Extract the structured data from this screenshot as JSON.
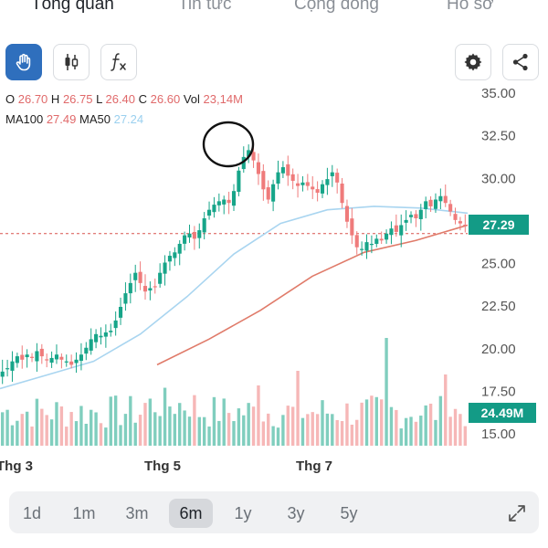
{
  "tabs": [
    {
      "label": "Tổng quan",
      "active": true
    },
    {
      "label": "Tin tức",
      "active": false
    },
    {
      "label": "Cộng đồng",
      "active": false
    },
    {
      "label": "Hồ sơ",
      "active": false
    }
  ],
  "toolbar": {
    "tools": [
      "hand-icon",
      "candlestick-icon",
      "function-icon"
    ],
    "active_tool": "hand-icon",
    "right": [
      "gear-icon",
      "share-icon"
    ]
  },
  "ohlc": {
    "o_label": "O",
    "o": "26.70",
    "h_label": "H",
    "h": "26.75",
    "l_label": "L",
    "l": "26.40",
    "c_label": "C",
    "c": "26.60",
    "vol_label": "Vol",
    "vol": "23,14M"
  },
  "ma": {
    "ma100_label": "MA100",
    "ma100": "27.49",
    "ma50_label": "MA50",
    "ma50": "27.24"
  },
  "badges": {
    "price": "27.29",
    "volume": "24.49M"
  },
  "range_buttons": [
    {
      "label": "1d",
      "active": false
    },
    {
      "label": "1m",
      "active": false
    },
    {
      "label": "3m",
      "active": false
    },
    {
      "label": "6m",
      "active": true
    },
    {
      "label": "1y",
      "active": false
    },
    {
      "label": "3y",
      "active": false
    },
    {
      "label": "5y",
      "active": false
    }
  ],
  "colors": {
    "up": "#17a589",
    "down": "#ef7b7b",
    "ma50": "#a9d5f0",
    "ma100": "#e07b6a",
    "accent": "#2f6fbd",
    "badge": "#139b86"
  },
  "chart_data": {
    "type": "candlestick",
    "y_ticks": [
      "35.00",
      "32.50",
      "30.00",
      "27.50",
      "25.00",
      "22.50",
      "20.00",
      "17.50",
      "15.00"
    ],
    "ylim": [
      15,
      35
    ],
    "x_labels": [
      "Thg 3",
      "Thg 5",
      "Thg 7"
    ],
    "last_price": 27.29,
    "reference_price": 26.7,
    "close_path": [
      18.6,
      18.8,
      19.2,
      19.5,
      19.3,
      19.6,
      19.4,
      19.8,
      19.5,
      19.3,
      19.4,
      19.6,
      19.3,
      19.2,
      19.0,
      19.3,
      19.6,
      20.0,
      20.5,
      20.8,
      20.7,
      20.9,
      21.0,
      21.6,
      22.4,
      23.2,
      23.8,
      24.4,
      23.8,
      23.3,
      23.5,
      23.6,
      24.4,
      25.0,
      25.4,
      25.6,
      26.1,
      26.6,
      26.7,
      26.4,
      26.9,
      27.6,
      28.1,
      28.4,
      28.6,
      28.7,
      28.5,
      29.2,
      30.4,
      31.2,
      31.6,
      31.0,
      30.2,
      29.3,
      28.7,
      29.6,
      30.3,
      30.6,
      30.1,
      29.8,
      29.5,
      29.7,
      29.5,
      29.3,
      29.1,
      29.6,
      29.9,
      30.3,
      29.7,
      28.5,
      27.4,
      26.6,
      25.9,
      25.8,
      26.2,
      26.1,
      26.4,
      26.3,
      26.7,
      27.0,
      26.8,
      27.2,
      27.5,
      27.8,
      27.6,
      28.1,
      28.6,
      28.3,
      28.7,
      28.9,
      28.5,
      28.0,
      27.5,
      27.3,
      27.2
    ],
    "ma50_path": [
      17.6,
      18.4,
      19.2,
      20.8,
      23.0,
      25.5,
      27.3,
      28.1,
      28.3,
      28.2,
      27.9
    ],
    "ma100_path": [
      19.0,
      20.5,
      22.2,
      24.2,
      25.6,
      26.3,
      27.2
    ]
  }
}
